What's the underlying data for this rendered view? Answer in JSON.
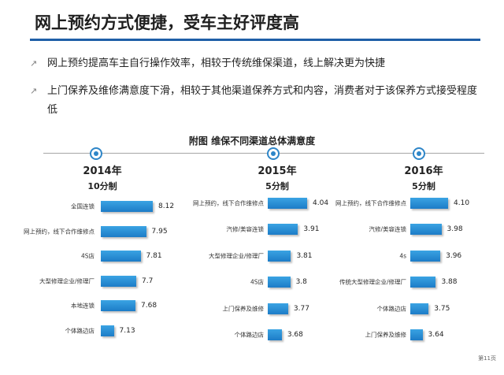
{
  "title": "网上预约方式便捷，受车主好评度高",
  "bullets": [
    "网上预约提高车主自行操作效率，相较于传统维保渠道，线上解决更为快捷",
    "上门保养及维修满意度下滑，相较于其他渠道保养方式和内容，消费者对于该保养方式接受程度低"
  ],
  "figure_caption": "附图  维保不同渠道总体满意度",
  "page_number": "第11页",
  "chart_data": [
    {
      "type": "bar",
      "title": "2014年",
      "subtitle": "10分制",
      "categories": [
        "全国连锁",
        "网上预约，线下合作维修点",
        "4S店",
        "大型修理企业/修理厂",
        "本地连锁",
        "个体路边店"
      ],
      "values": [
        8.12,
        7.95,
        7.81,
        7.7,
        7.68,
        7.13
      ],
      "value_labels": [
        "8.12",
        "7.95",
        "7.81",
        "7.7",
        "7.68",
        "7.13"
      ],
      "xlim": [
        6.8,
        8.12
      ],
      "orientation": "horizontal"
    },
    {
      "type": "bar",
      "title": "2015年",
      "subtitle": "5分制",
      "categories": [
        "网上预约，线下合作维修点",
        "汽修/美容连锁",
        "大型修理企业/修理厂",
        "4S店",
        "上门保养及维修",
        "个体路边店"
      ],
      "values": [
        4.04,
        3.91,
        3.81,
        3.8,
        3.77,
        3.68
      ],
      "value_labels": [
        "4.04",
        "3.91",
        "3.81",
        "3.8",
        "3.77",
        "3.68"
      ],
      "xlim": [
        3.48,
        4.04
      ],
      "orientation": "horizontal"
    },
    {
      "type": "bar",
      "title": "2016年",
      "subtitle": "5分制",
      "categories": [
        "网上预约，线下合作维修点",
        "汽修/美容连锁",
        "4s",
        "传统大型修理企业/修理厂",
        "个体路边店",
        "上门保养及维修"
      ],
      "values": [
        4.1,
        3.98,
        3.96,
        3.88,
        3.75,
        3.64
      ],
      "value_labels": [
        "4.10",
        "3.98",
        "3.96",
        "3.88",
        "3.75",
        "3.64"
      ],
      "xlim": [
        3.42,
        4.1
      ],
      "orientation": "horizontal"
    }
  ],
  "colors": {
    "accent": "#1f5fa8",
    "bar": "#1d7cc7",
    "node": "#2e86c8"
  },
  "icons": {
    "bullet": "arrow-bullet-icon",
    "timeline_node": "timeline-node-icon"
  }
}
